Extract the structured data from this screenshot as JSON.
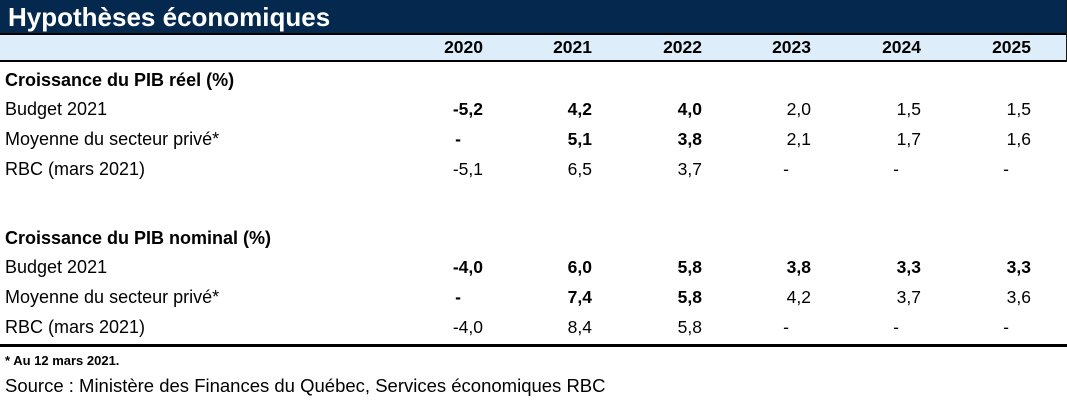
{
  "title": "Hypothèses économiques",
  "years": [
    "2020",
    "2021",
    "2022",
    "2023",
    "2024",
    "2025"
  ],
  "sections": [
    {
      "header": "Croissance du PIB réel (%)",
      "rows": [
        {
          "label": "Budget 2021",
          "values": [
            {
              "text": "-5,2",
              "bold": true
            },
            {
              "text": "4,2",
              "bold": true
            },
            {
              "text": "4,0",
              "bold": true
            },
            {
              "text": "2,0",
              "bold": false
            },
            {
              "text": "1,5",
              "bold": false
            },
            {
              "text": "1,5",
              "bold": false
            }
          ]
        },
        {
          "label": "Moyenne du secteur privé*",
          "values": [
            {
              "text": "-",
              "bold": true
            },
            {
              "text": "5,1",
              "bold": true
            },
            {
              "text": "3,8",
              "bold": true
            },
            {
              "text": "2,1",
              "bold": false
            },
            {
              "text": "1,7",
              "bold": false
            },
            {
              "text": "1,6",
              "bold": false
            }
          ]
        },
        {
          "label": "RBC (mars 2021)",
          "values": [
            {
              "text": "-5,1",
              "bold": false
            },
            {
              "text": "6,5",
              "bold": false
            },
            {
              "text": "3,7",
              "bold": false
            },
            {
              "text": "-",
              "bold": false
            },
            {
              "text": "-",
              "bold": false
            },
            {
              "text": "-",
              "bold": false
            }
          ]
        }
      ]
    },
    {
      "header": "Croissance du PIB nominal (%)",
      "rows": [
        {
          "label": "Budget 2021",
          "values": [
            {
              "text": "-4,0",
              "bold": true
            },
            {
              "text": "6,0",
              "bold": true
            },
            {
              "text": "5,8",
              "bold": true
            },
            {
              "text": "3,8",
              "bold": true
            },
            {
              "text": "3,3",
              "bold": true
            },
            {
              "text": "3,3",
              "bold": true
            }
          ]
        },
        {
          "label": "Moyenne du secteur privé*",
          "values": [
            {
              "text": "-",
              "bold": true
            },
            {
              "text": "7,4",
              "bold": true
            },
            {
              "text": "5,8",
              "bold": true
            },
            {
              "text": "4,2",
              "bold": false
            },
            {
              "text": "3,7",
              "bold": false
            },
            {
              "text": "3,6",
              "bold": false
            }
          ]
        },
        {
          "label": "RBC (mars 2021)",
          "values": [
            {
              "text": "-4,0",
              "bold": false
            },
            {
              "text": "8,4",
              "bold": false
            },
            {
              "text": "5,8",
              "bold": false
            },
            {
              "text": "-",
              "bold": false
            },
            {
              "text": "-",
              "bold": false
            },
            {
              "text": "-",
              "bold": false
            }
          ]
        }
      ]
    }
  ],
  "footnote": "* Au 12 mars 2021.",
  "source": "Source : Ministère des Finances du Québec, Services économiques RBC",
  "colors": {
    "title_bg": "#04284e",
    "title_text": "#ffffff",
    "year_band_bg": "#ddeefa",
    "rule": "#000000"
  }
}
